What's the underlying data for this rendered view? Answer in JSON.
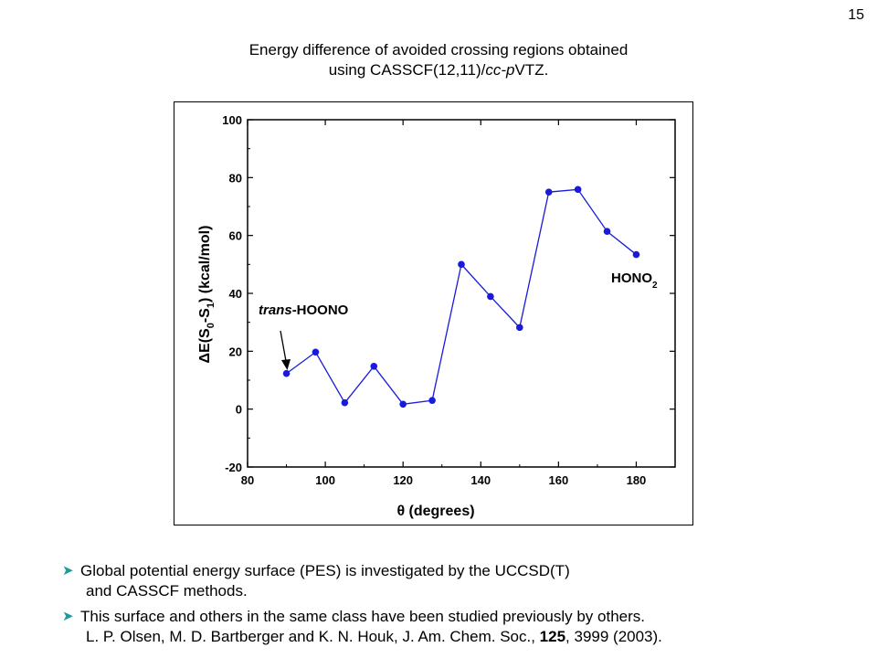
{
  "slide_number": "15",
  "title": {
    "line1": "Energy difference of avoided crossing regions obtained",
    "line2_prefix": "using CASSCF(12,11)/",
    "line2_italic": "cc-p",
    "line2_suffix": "VTZ."
  },
  "chart_data": {
    "type": "line",
    "x": [
      90,
      97.5,
      105,
      112.5,
      120,
      127.5,
      135,
      142.5,
      150,
      157.5,
      165,
      172.5,
      180
    ],
    "series": [
      {
        "values": [
          12.3,
          19.7,
          2.2,
          14.8,
          1.7,
          3.0,
          50.0,
          38.9,
          28.2,
          75.0,
          75.9,
          61.4,
          53.4
        ],
        "color": "#1a1adc"
      }
    ],
    "xlabel": "θ (degrees)",
    "ylabel": "ΔE(S0-S1) (kcal/mol)",
    "xlim": [
      80,
      190
    ],
    "ylim": [
      -20,
      100
    ],
    "xticks": [
      80,
      100,
      120,
      140,
      160,
      180
    ],
    "yticks": [
      -20,
      0,
      20,
      40,
      60,
      80,
      100
    ],
    "grid": false,
    "annotations": [
      {
        "italic": "trans",
        "text": "-HOONO",
        "x": 90,
        "y": 12.3
      },
      {
        "text": "HONO",
        "subscript": "2",
        "x": 180,
        "y": 53.4
      }
    ]
  },
  "bullets": [
    {
      "line1": "Global potential energy surface (PES) is investigated by the UCCSD(T)",
      "line2": "and CASSCF  methods."
    },
    {
      "line1": "This surface and others in the same class have been studied previously by others.",
      "line2_a": "L. P. Olsen, M. D. Bartberger and K. N. Houk, J. Am. Chem. Soc., ",
      "line2_bold": "125",
      "line2_b": ", 3999 (2003)."
    }
  ],
  "colors": {
    "series": "#1a1adc",
    "bullet_arrow": "#1d9a9a"
  }
}
